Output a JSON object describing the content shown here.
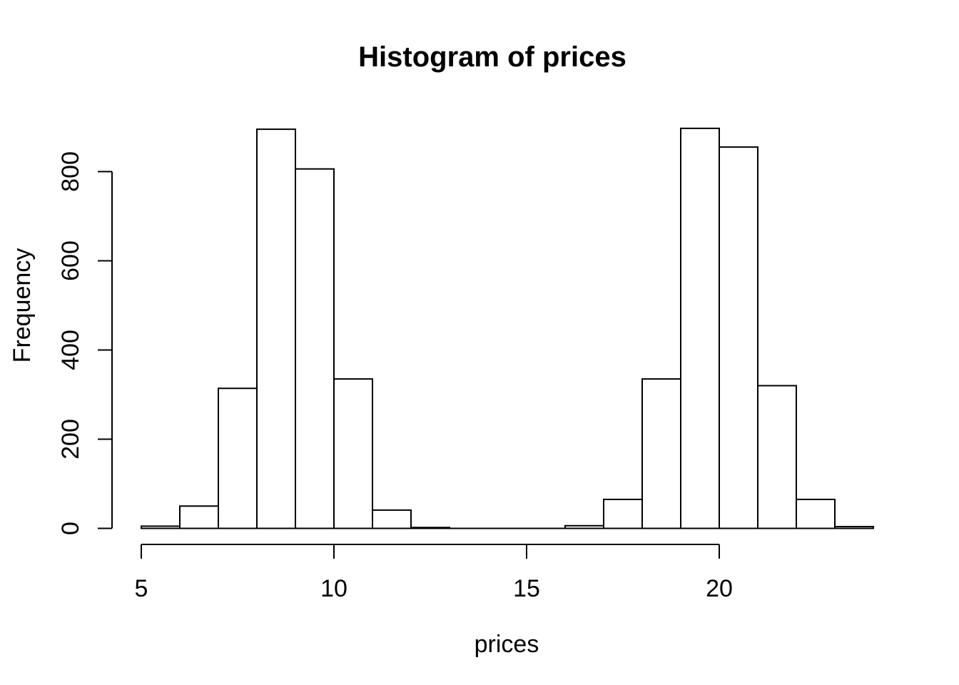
{
  "chart_data": {
    "type": "bar",
    "subtype": "histogram",
    "title": "Histogram of prices",
    "xlabel": "prices",
    "ylabel": "Frequency",
    "bin_edges": [
      5,
      6,
      7,
      8,
      9,
      10,
      11,
      12,
      13,
      14,
      15,
      16,
      17,
      18,
      19,
      20,
      21,
      22,
      23,
      24
    ],
    "counts": [
      5,
      50,
      314,
      895,
      806,
      335,
      41,
      2,
      0,
      0,
      0,
      6,
      65,
      335,
      897,
      855,
      320,
      65,
      4
    ],
    "x_ticks": [
      {
        "value": 5,
        "label": "5"
      },
      {
        "value": 10,
        "label": "10"
      },
      {
        "value": 15,
        "label": "15"
      },
      {
        "value": 20,
        "label": "20"
      }
    ],
    "y_ticks": [
      {
        "value": 0,
        "label": "0"
      },
      {
        "value": 200,
        "label": "200"
      },
      {
        "value": 400,
        "label": "400"
      },
      {
        "value": 600,
        "label": "600"
      },
      {
        "value": 800,
        "label": "800"
      }
    ],
    "xlim": [
      5,
      24
    ],
    "ylim": [
      0,
      900
    ],
    "grid": false,
    "legend": null,
    "bar_fill": "#ffffff",
    "bar_stroke": "#000000",
    "axis_color": "#000000",
    "background": "#ffffff"
  }
}
